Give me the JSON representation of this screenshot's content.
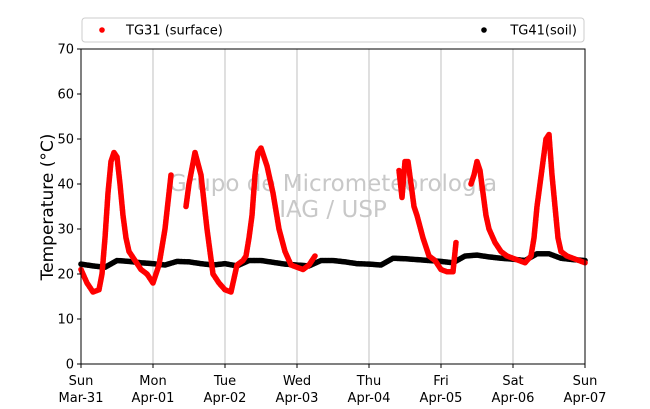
{
  "chart_data": {
    "type": "scatter",
    "ylabel": "Temperature (°C)",
    "ylim": [
      0,
      70
    ],
    "yticks": [
      0,
      10,
      20,
      30,
      40,
      50,
      60,
      70
    ],
    "xlim": [
      "2019-03-31T00:00",
      "2019-04-07T00:00"
    ],
    "xticks": [
      {
        "at": "2019-03-31T00:00",
        "day": "Sun",
        "date": "Mar-31"
      },
      {
        "at": "2019-04-01T00:00",
        "day": "Mon",
        "date": "Apr-01"
      },
      {
        "at": "2019-04-02T00:00",
        "day": "Tue",
        "date": "Apr-02"
      },
      {
        "at": "2019-04-03T00:00",
        "day": "Wed",
        "date": "Apr-03"
      },
      {
        "at": "2019-04-04T00:00",
        "day": "Thu",
        "date": "Apr-04"
      },
      {
        "at": "2019-04-05T00:00",
        "day": "Fri",
        "date": "Apr-05"
      },
      {
        "at": "2019-04-06T00:00",
        "day": "Sat",
        "date": "Apr-06"
      },
      {
        "at": "2019-04-07T00:00",
        "day": "Sun",
        "date": "Apr-07"
      }
    ],
    "grid": "vertical",
    "legend_position": "top",
    "watermark": [
      "Grupo de Micrometeorologia",
      "IAG / USP"
    ],
    "series": [
      {
        "name": "TG31 (surface)",
        "color": "#ff0000",
        "x": [
          "2019-03-31T00:00",
          "2019-03-31T02:00",
          "2019-03-31T04:00",
          "2019-03-31T06:00",
          "2019-03-31T07:00",
          "2019-03-31T08:00",
          "2019-03-31T09:00",
          "2019-03-31T10:00",
          "2019-03-31T11:00",
          "2019-03-31T12:00",
          "2019-03-31T13:00",
          "2019-03-31T14:00",
          "2019-03-31T15:00",
          "2019-03-31T16:00",
          "2019-03-31T18:00",
          "2019-03-31T20:00",
          "2019-03-31T22:00",
          "2019-04-01T00:00",
          "2019-04-01T02:00",
          "2019-04-01T04:00",
          "2019-04-01T06:00",
          "2019-04-01T11:00",
          "2019-04-01T12:00",
          "2019-04-01T14:00",
          "2019-04-01T16:00",
          "2019-04-01T18:00",
          "2019-04-01T20:00",
          "2019-04-01T22:00",
          "2019-04-02T00:00",
          "2019-04-02T02:00",
          "2019-04-02T04:00",
          "2019-04-02T06:00",
          "2019-04-02T07:00",
          "2019-04-02T08:00",
          "2019-04-02T09:00",
          "2019-04-02T10:00",
          "2019-04-02T11:00",
          "2019-04-02T12:00",
          "2019-04-02T13:00",
          "2019-04-02T14:00",
          "2019-04-02T16:00",
          "2019-04-02T18:00",
          "2019-04-02T20:00",
          "2019-04-02T22:00",
          "2019-04-03T00:00",
          "2019-04-03T02:00",
          "2019-04-03T04:00",
          "2019-04-03T06:00",
          "2019-04-04T10:00",
          "2019-04-04T11:00",
          "2019-04-04T12:00",
          "2019-04-04T13:00",
          "2019-04-04T14:00",
          "2019-04-04T15:00",
          "2019-04-04T16:00",
          "2019-04-04T18:00",
          "2019-04-04T20:00",
          "2019-04-04T22:00",
          "2019-04-05T00:00",
          "2019-04-05T02:00",
          "2019-04-05T04:00",
          "2019-04-05T05:00",
          "2019-04-05T10:00",
          "2019-04-05T11:00",
          "2019-04-05T12:00",
          "2019-04-05T13:00",
          "2019-04-05T14:00",
          "2019-04-05T15:00",
          "2019-04-05T16:00",
          "2019-04-05T18:00",
          "2019-04-05T20:00",
          "2019-04-05T22:00",
          "2019-04-06T00:00",
          "2019-04-06T02:00",
          "2019-04-06T04:00",
          "2019-04-06T06:00",
          "2019-04-06T07:00",
          "2019-04-06T08:00",
          "2019-04-06T09:00",
          "2019-04-06T10:00",
          "2019-04-06T11:00",
          "2019-04-06T12:00",
          "2019-04-06T13:00",
          "2019-04-06T14:00",
          "2019-04-06T15:00",
          "2019-04-06T16:00",
          "2019-04-06T18:00",
          "2019-04-06T20:00",
          "2019-04-06T22:00",
          "2019-04-07T00:00"
        ],
        "values": [
          21,
          18,
          16,
          16.5,
          20,
          28,
          38,
          45,
          47,
          46,
          40,
          33,
          28,
          25,
          23,
          21,
          20,
          18,
          22,
          30,
          42,
          35,
          40,
          47,
          42,
          30,
          20,
          18,
          16.5,
          16,
          22,
          23,
          24,
          28,
          33,
          42,
          47,
          48,
          46,
          44,
          38,
          30,
          25,
          22,
          21.5,
          21,
          22,
          24,
          43,
          37,
          45,
          45,
          40,
          35,
          33,
          28,
          24,
          23,
          21,
          20.5,
          20.5,
          27,
          40,
          42,
          45,
          43,
          38,
          33,
          30,
          27,
          25,
          24,
          23.5,
          23,
          22.5,
          24,
          28,
          35,
          40,
          45,
          50,
          51,
          42,
          35,
          28,
          25,
          24,
          23.5,
          23,
          22.5
        ]
      },
      {
        "name": "TG41(soil)",
        "color": "#000000",
        "x": [
          "2019-03-31T00:00",
          "2019-03-31T04:00",
          "2019-03-31T08:00",
          "2019-03-31T12:00",
          "2019-03-31T16:00",
          "2019-03-31T20:00",
          "2019-04-01T00:00",
          "2019-04-01T04:00",
          "2019-04-01T08:00",
          "2019-04-01T12:00",
          "2019-04-01T16:00",
          "2019-04-01T20:00",
          "2019-04-02T00:00",
          "2019-04-02T04:00",
          "2019-04-02T08:00",
          "2019-04-02T12:00",
          "2019-04-02T16:00",
          "2019-04-02T20:00",
          "2019-04-03T00:00",
          "2019-04-03T04:00",
          "2019-04-03T08:00",
          "2019-04-03T12:00",
          "2019-04-03T16:00",
          "2019-04-03T20:00",
          "2019-04-04T00:00",
          "2019-04-04T04:00",
          "2019-04-04T08:00",
          "2019-04-04T12:00",
          "2019-04-04T16:00",
          "2019-04-04T20:00",
          "2019-04-05T00:00",
          "2019-04-05T04:00",
          "2019-04-05T08:00",
          "2019-04-05T12:00",
          "2019-04-05T16:00",
          "2019-04-05T20:00",
          "2019-04-06T00:00",
          "2019-04-06T04:00",
          "2019-04-06T08:00",
          "2019-04-06T12:00",
          "2019-04-06T16:00",
          "2019-04-06T20:00",
          "2019-04-07T00:00"
        ],
        "values": [
          22.2,
          21.8,
          21.5,
          23,
          22.8,
          22.5,
          22.3,
          22,
          22.8,
          22.7,
          22.3,
          22,
          22.3,
          21.8,
          23,
          23,
          22.6,
          22.2,
          22,
          21.8,
          23,
          23,
          22.7,
          22.3,
          22.2,
          22,
          23.5,
          23.4,
          23.2,
          23,
          22.8,
          22.5,
          24,
          24.2,
          23.8,
          23.5,
          23.3,
          23,
          24.5,
          24.5,
          23.5,
          23.2,
          23
        ]
      }
    ]
  }
}
